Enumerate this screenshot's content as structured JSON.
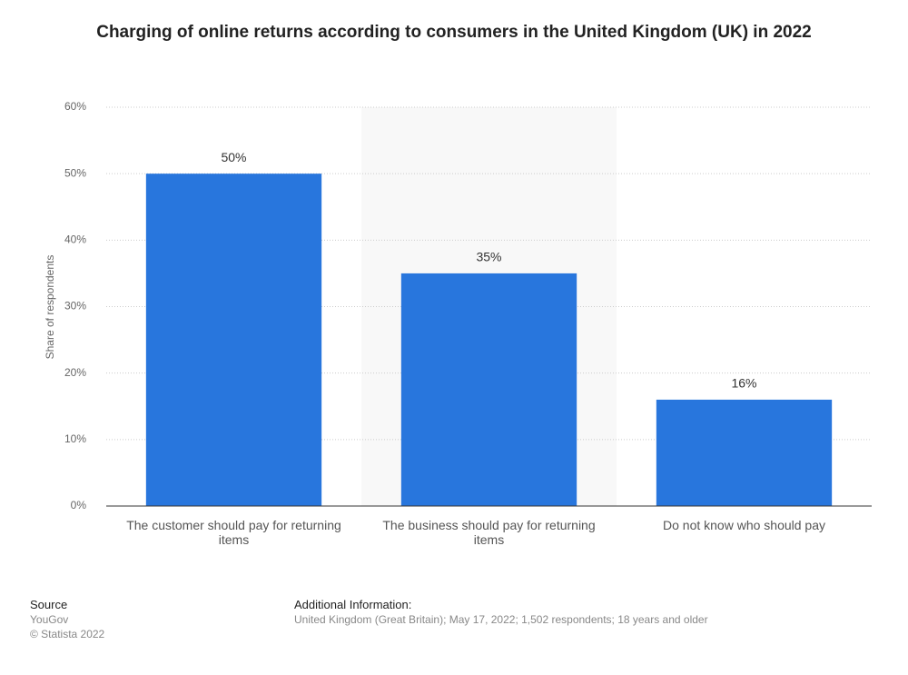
{
  "chart_data": {
    "type": "bar",
    "title": "Charging of online returns according to consumers in the United Kingdom (UK) in 2022",
    "y_label": "Share of respondents",
    "categories": [
      "The customer should pay for returning items",
      "The business should pay for returning items",
      "Do not know who should pay"
    ],
    "values": [
      50,
      35,
      16
    ],
    "value_labels": [
      "50%",
      "35%",
      "16%"
    ],
    "color": "#2876dd",
    "ylim": [
      0,
      60
    ],
    "yticks": [
      {
        "value": 0,
        "label": "0%"
      },
      {
        "value": 10,
        "label": "10%"
      },
      {
        "value": 20,
        "label": "20%"
      },
      {
        "value": 30,
        "label": "30%"
      },
      {
        "value": 40,
        "label": "40%"
      },
      {
        "value": 50,
        "label": "50%"
      },
      {
        "value": 60,
        "label": "60%"
      }
    ],
    "grid": true
  },
  "footer": {
    "source_heading": "Source",
    "source": "YouGov",
    "copyright": "© Statista 2022",
    "info_heading": "Additional Information:",
    "info": "United Kingdom (Great Britain); May 17, 2022; 1,502 respondents; 18 years and older"
  }
}
